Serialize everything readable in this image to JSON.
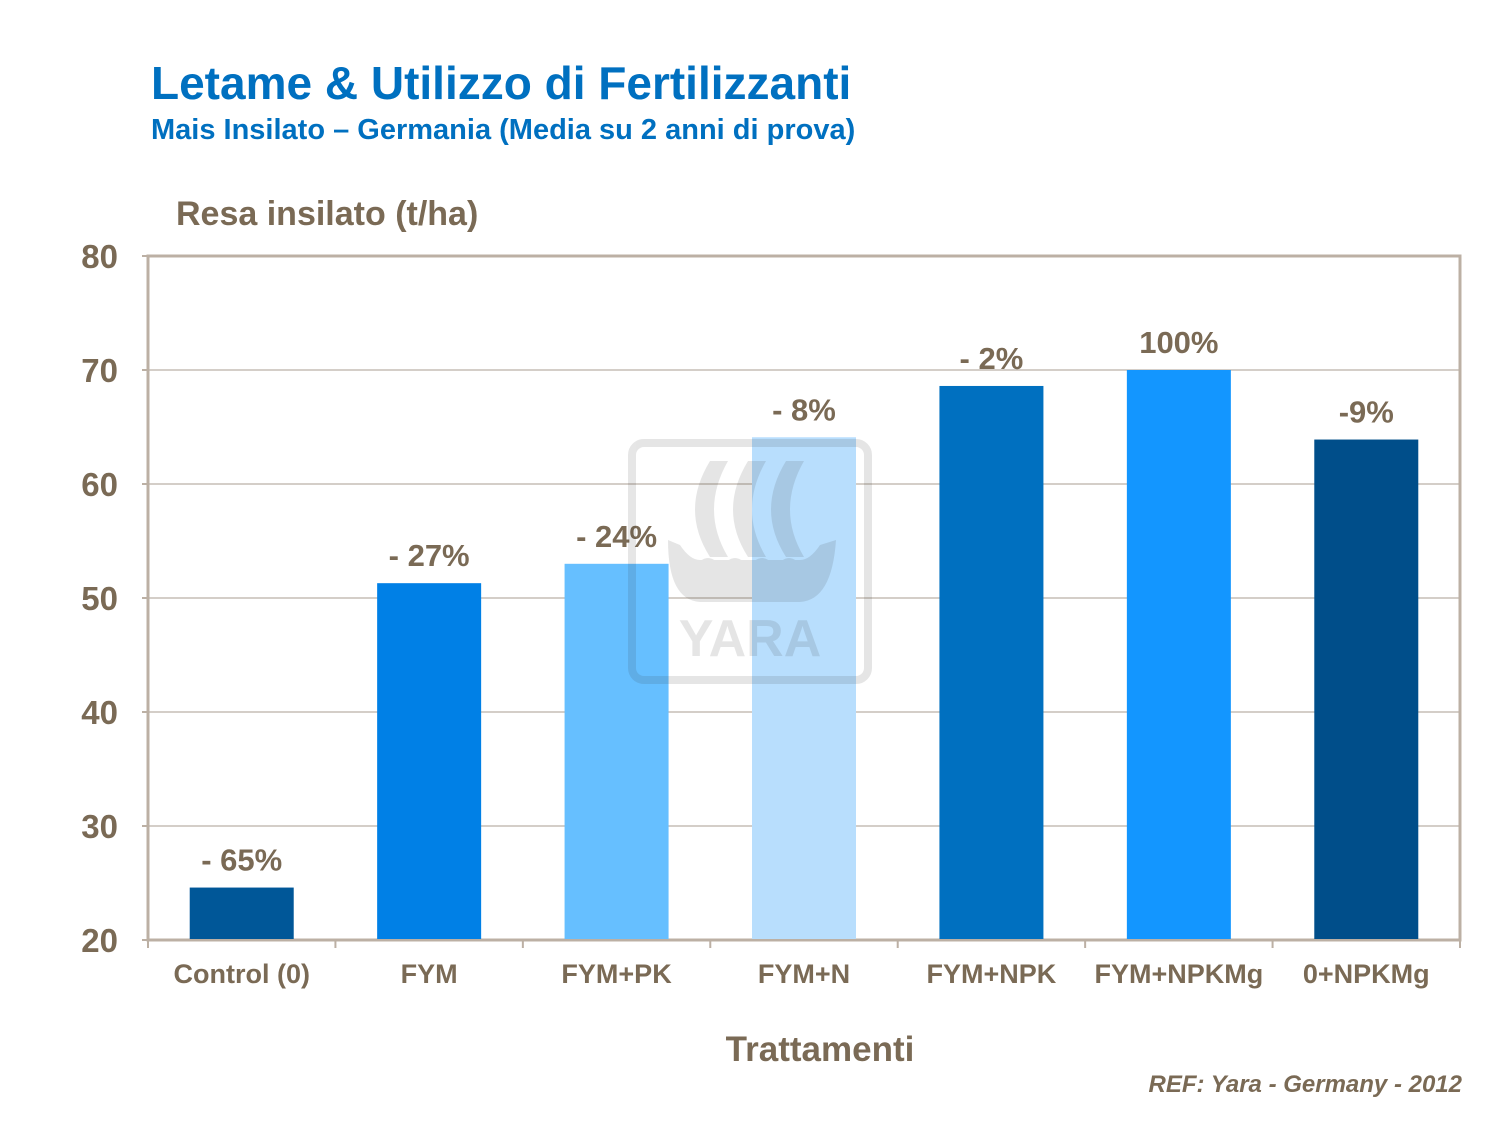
{
  "chart_data": {
    "type": "bar",
    "title": "Letame & Utilizzo di Fertilizzanti",
    "subtitle": "Mais Insilato – Germania (Media su 2 anni di prova)",
    "ylabel": "Resa insilato (t/ha)",
    "xlabel": "Trattamenti",
    "ylim": [
      20,
      80
    ],
    "yticks": [
      20,
      30,
      40,
      50,
      60,
      70,
      80
    ],
    "grid": true,
    "categories": [
      "Control (0)",
      "FYM",
      "FYM+PK",
      "FYM+N",
      "FYM+NPK",
      "FYM+NPKMg",
      "0+NPKMg"
    ],
    "values": [
      24.6,
      51.3,
      53.0,
      64.1,
      68.6,
      70.0,
      63.9
    ],
    "data_labels": [
      "- 65%",
      "- 27%",
      "- 24%",
      "- 8%",
      "- 2%",
      "100%",
      "-9%"
    ],
    "colors": [
      "#005798",
      "#0080E6",
      "#66BFFF",
      "#B8DEFD",
      "#0070C0",
      "#1396FF",
      "#004E8A"
    ],
    "axis_color": "#BCB0A4",
    "text_color": "#7A6A55",
    "watermark": "YARA"
  },
  "footer": {
    "ref": "REF: Yara - Germany - 2012"
  }
}
